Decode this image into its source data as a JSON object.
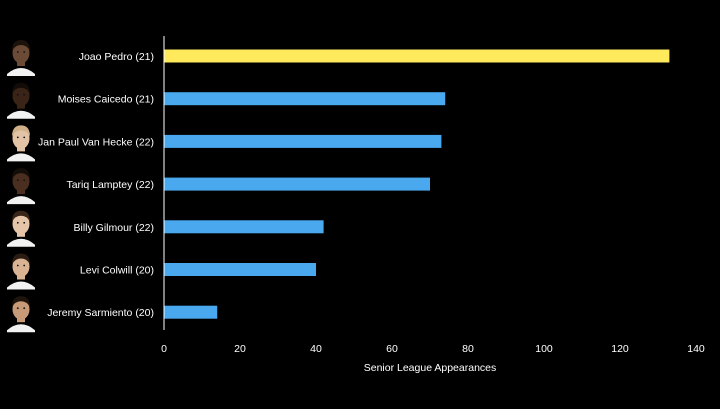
{
  "chart_data": {
    "type": "bar",
    "orientation": "horizontal",
    "categories": [
      "Joao Pedro (21)",
      "Moises Caicedo (21)",
      "Jan Paul Van Hecke (22)",
      "Tariq Lamptey (22)",
      "Billy Gilmour (22)",
      "Levi Colwill (20)",
      "Jeremy Sarmiento (20)"
    ],
    "values": [
      133,
      74,
      73,
      70,
      42,
      40,
      14
    ],
    "highlight_index": 0,
    "bar_colors": [
      "#ffea5b",
      "#4aa8ee",
      "#4aa8ee",
      "#4aa8ee",
      "#4aa8ee",
      "#4aa8ee",
      "#4aa8ee"
    ],
    "xlabel": "Senior League Appearances",
    "xlim": [
      0,
      140
    ],
    "xticks": [
      0,
      20,
      40,
      60,
      80,
      100,
      120,
      140
    ],
    "grid": false,
    "player_avatars": [
      {
        "icon": "player-avatar-icon",
        "skin": "#6b4a36",
        "hair": "#1c120c"
      },
      {
        "icon": "player-avatar-icon",
        "skin": "#3a2418",
        "hair": "#120b07"
      },
      {
        "icon": "player-avatar-icon",
        "skin": "#e2c3a6",
        "hair": "#cfb089"
      },
      {
        "icon": "player-avatar-icon",
        "skin": "#4a2e1f",
        "hair": "#140c08"
      },
      {
        "icon": "player-avatar-icon",
        "skin": "#e6c4a8",
        "hair": "#3a2618"
      },
      {
        "icon": "player-avatar-icon",
        "skin": "#d9b394",
        "hair": "#2a1c12"
      },
      {
        "icon": "player-avatar-icon",
        "skin": "#c99a78",
        "hair": "#1e140c"
      }
    ],
    "colors": {
      "background": "#000000",
      "text": "#ffffff",
      "axis": "#ffffff",
      "shirt": "#f2f2f2"
    }
  }
}
